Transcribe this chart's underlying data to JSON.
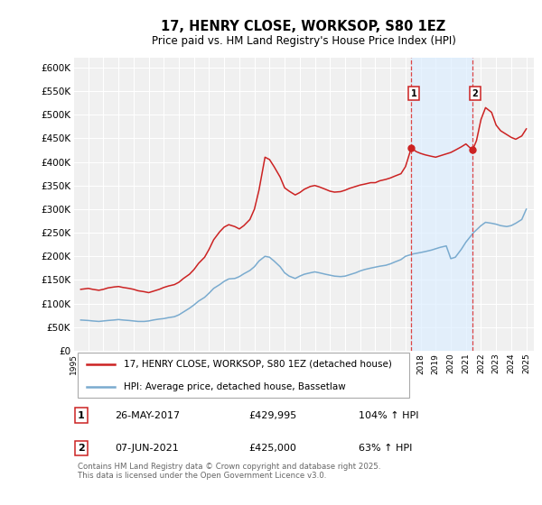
{
  "title": "17, HENRY CLOSE, WORKSOP, S80 1EZ",
  "subtitle": "Price paid vs. HM Land Registry's House Price Index (HPI)",
  "ylim": [
    0,
    620000
  ],
  "yticks": [
    0,
    50000,
    100000,
    150000,
    200000,
    250000,
    300000,
    350000,
    400000,
    450000,
    500000,
    550000,
    600000
  ],
  "ytick_labels": [
    "£0",
    "£50K",
    "£100K",
    "£150K",
    "£200K",
    "£250K",
    "£300K",
    "£350K",
    "£400K",
    "£450K",
    "£500K",
    "£550K",
    "£600K"
  ],
  "xlim_start": 1995.0,
  "xlim_end": 2025.5,
  "background_color": "#ffffff",
  "plot_bg_color": "#f0f0f0",
  "grid_color": "#ffffff",
  "red_color": "#cc2222",
  "blue_color": "#7aabcf",
  "vline_color": "#dd4444",
  "span_color": "#ddeeff",
  "marker1_x": 2017.39,
  "marker1_y": 429995,
  "marker1_label": "1",
  "marker1_date": "26-MAY-2017",
  "marker1_price": "£429,995",
  "marker1_hpi": "104% ↑ HPI",
  "marker2_x": 2021.44,
  "marker2_y": 425000,
  "marker2_label": "2",
  "marker2_date": "07-JUN-2021",
  "marker2_price": "£425,000",
  "marker2_hpi": "63% ↑ HPI",
  "legend_line1": "17, HENRY CLOSE, WORKSOP, S80 1EZ (detached house)",
  "legend_line2": "HPI: Average price, detached house, Bassetlaw",
  "footer": "Contains HM Land Registry data © Crown copyright and database right 2025.\nThis data is licensed under the Open Government Licence v3.0.",
  "red_data_years": [
    1995.5,
    1996.0,
    1996.3,
    1996.7,
    1997.0,
    1997.3,
    1997.7,
    1998.0,
    1998.3,
    1998.7,
    1999.0,
    1999.3,
    1999.7,
    2000.0,
    2000.3,
    2000.7,
    2001.0,
    2001.3,
    2001.7,
    2002.0,
    2002.3,
    2002.7,
    2003.0,
    2003.3,
    2003.7,
    2004.0,
    2004.3,
    2004.7,
    2005.0,
    2005.3,
    2005.7,
    2006.0,
    2006.3,
    2006.7,
    2007.0,
    2007.3,
    2007.7,
    2008.0,
    2008.3,
    2008.7,
    2009.0,
    2009.3,
    2009.7,
    2010.0,
    2010.3,
    2010.7,
    2011.0,
    2011.3,
    2011.7,
    2012.0,
    2012.3,
    2012.7,
    2013.0,
    2013.3,
    2013.7,
    2014.0,
    2014.3,
    2014.7,
    2015.0,
    2015.3,
    2015.7,
    2016.0,
    2016.3,
    2016.7,
    2017.0,
    2017.39,
    2017.7,
    2018.0,
    2018.3,
    2018.7,
    2019.0,
    2019.3,
    2019.7,
    2020.0,
    2020.3,
    2020.7,
    2021.0,
    2021.44,
    2021.7,
    2022.0,
    2022.3,
    2022.7,
    2023.0,
    2023.3,
    2023.7,
    2024.0,
    2024.3,
    2024.7,
    2025.0
  ],
  "red_data_vals": [
    130000,
    132000,
    130000,
    128000,
    130000,
    133000,
    135000,
    136000,
    134000,
    132000,
    130000,
    127000,
    125000,
    123000,
    126000,
    130000,
    134000,
    137000,
    140000,
    145000,
    153000,
    162000,
    172000,
    185000,
    198000,
    215000,
    235000,
    252000,
    262000,
    267000,
    263000,
    258000,
    265000,
    278000,
    300000,
    340000,
    410000,
    405000,
    390000,
    368000,
    345000,
    338000,
    330000,
    335000,
    342000,
    348000,
    350000,
    347000,
    342000,
    338000,
    336000,
    337000,
    340000,
    344000,
    348000,
    351000,
    353000,
    356000,
    356000,
    360000,
    363000,
    366000,
    370000,
    375000,
    390000,
    429995,
    422000,
    418000,
    415000,
    412000,
    410000,
    413000,
    417000,
    420000,
    425000,
    432000,
    438000,
    425000,
    445000,
    490000,
    515000,
    505000,
    478000,
    466000,
    458000,
    452000,
    448000,
    455000,
    470000
  ],
  "blue_data_years": [
    1995.5,
    1996.0,
    1996.3,
    1996.7,
    1997.0,
    1997.3,
    1997.7,
    1998.0,
    1998.3,
    1998.7,
    1999.0,
    1999.3,
    1999.7,
    2000.0,
    2000.3,
    2000.7,
    2001.0,
    2001.3,
    2001.7,
    2002.0,
    2002.3,
    2002.7,
    2003.0,
    2003.3,
    2003.7,
    2004.0,
    2004.3,
    2004.7,
    2005.0,
    2005.3,
    2005.7,
    2006.0,
    2006.3,
    2006.7,
    2007.0,
    2007.3,
    2007.7,
    2008.0,
    2008.3,
    2008.7,
    2009.0,
    2009.3,
    2009.7,
    2010.0,
    2010.3,
    2010.7,
    2011.0,
    2011.3,
    2011.7,
    2012.0,
    2012.3,
    2012.7,
    2013.0,
    2013.3,
    2013.7,
    2014.0,
    2014.3,
    2014.7,
    2015.0,
    2015.3,
    2015.7,
    2016.0,
    2016.3,
    2016.7,
    2017.0,
    2017.5,
    2018.0,
    2018.3,
    2018.7,
    2019.0,
    2019.3,
    2019.7,
    2020.0,
    2020.3,
    2020.7,
    2021.0,
    2021.5,
    2022.0,
    2022.3,
    2022.7,
    2023.0,
    2023.3,
    2023.7,
    2024.0,
    2024.3,
    2024.7,
    2025.0
  ],
  "blue_data_vals": [
    65000,
    64000,
    63000,
    62000,
    63000,
    64000,
    65000,
    66000,
    65000,
    64000,
    63000,
    62000,
    62000,
    63000,
    65000,
    67000,
    68000,
    70000,
    72000,
    76000,
    82000,
    90000,
    97000,
    105000,
    113000,
    122000,
    132000,
    140000,
    147000,
    152000,
    153000,
    157000,
    163000,
    170000,
    178000,
    190000,
    200000,
    198000,
    190000,
    178000,
    165000,
    158000,
    153000,
    158000,
    162000,
    165000,
    167000,
    165000,
    162000,
    160000,
    158000,
    157000,
    158000,
    161000,
    165000,
    169000,
    172000,
    175000,
    177000,
    179000,
    181000,
    184000,
    188000,
    193000,
    200000,
    205000,
    208000,
    210000,
    213000,
    216000,
    219000,
    222000,
    195000,
    198000,
    215000,
    230000,
    250000,
    265000,
    272000,
    270000,
    268000,
    265000,
    263000,
    265000,
    270000,
    278000,
    300000
  ]
}
